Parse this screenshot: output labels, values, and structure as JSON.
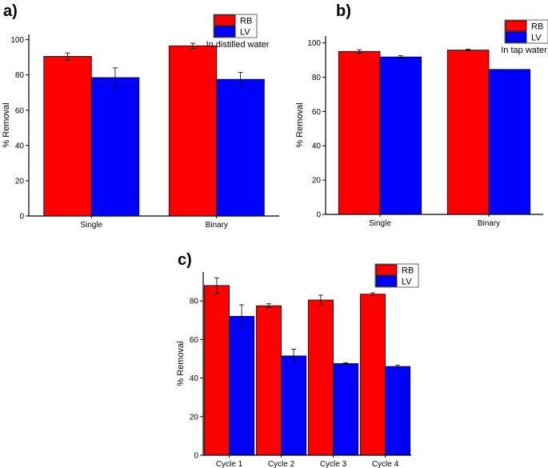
{
  "colors": {
    "rb": "#ff0000",
    "lv": "#0000ff",
    "axis": "#000000"
  },
  "chart_data": [
    {
      "panel": "a)",
      "type": "bar",
      "title": "",
      "xlabel": "",
      "ylabel": "% Removal",
      "annotation": "In distilled water",
      "ylim": [
        0,
        103
      ],
      "yticks": [
        0,
        20,
        40,
        60,
        80,
        100
      ],
      "categories": [
        "Single",
        "Binary"
      ],
      "series": [
        {
          "name": "RB",
          "values": [
            90.5,
            96.5
          ],
          "errors": [
            2,
            1.5
          ]
        },
        {
          "name": "LV",
          "values": [
            78.5,
            77.5
          ],
          "errors": [
            5.5,
            4
          ]
        }
      ]
    },
    {
      "panel": "b)",
      "type": "bar",
      "title": "",
      "xlabel": "",
      "ylabel": "% Removal",
      "annotation": "In tap water",
      "ylim": [
        0,
        104
      ],
      "yticks": [
        0,
        20,
        40,
        60,
        80,
        100
      ],
      "categories": [
        "Single",
        "Binary"
      ],
      "series": [
        {
          "name": "RB",
          "values": [
            95,
            95.8
          ],
          "errors": [
            1,
            0.5
          ]
        },
        {
          "name": "LV",
          "values": [
            91.8,
            84.5
          ],
          "errors": [
            0.7,
            0
          ]
        }
      ]
    },
    {
      "panel": "c)",
      "type": "bar",
      "title": "",
      "xlabel": "",
      "ylabel": "% Removal",
      "annotation": "",
      "ylim": [
        0,
        95
      ],
      "yticks": [
        0,
        20,
        40,
        60,
        80
      ],
      "categories": [
        "Cycle 1",
        "Cycle 2",
        "Cycle 3",
        "Cycle 4"
      ],
      "series": [
        {
          "name": "RB",
          "values": [
            88,
            77.5,
            80.5,
            83.5
          ],
          "errors": [
            4,
            1,
            2.5,
            0.7
          ]
        },
        {
          "name": "LV",
          "values": [
            72,
            51.5,
            47.5,
            46
          ],
          "errors": [
            6,
            3.5,
            0.5,
            0.7
          ]
        }
      ]
    }
  ]
}
